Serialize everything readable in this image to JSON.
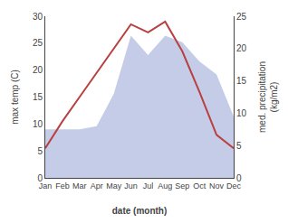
{
  "chart_data": {
    "type": "line",
    "categories": [
      "Jan",
      "Feb",
      "Mar",
      "Apr",
      "May",
      "Jun",
      "Jul",
      "Aug",
      "Sep",
      "Oct",
      "Nov",
      "Dec"
    ],
    "series": [
      {
        "type": "area",
        "axis": "y2",
        "color": "#c5cce8",
        "values": [
          7.5,
          7.5,
          7.5,
          8.0,
          13.0,
          22.0,
          19.0,
          22.0,
          21.0,
          18.0,
          16.0,
          9.5
        ]
      },
      {
        "type": "line",
        "color": "#b94040",
        "values": [
          5.5,
          10.5,
          15.0,
          19.5,
          24.0,
          28.5,
          27.0,
          29.0,
          23.5,
          16.0,
          8.0,
          5.5
        ]
      }
    ],
    "xlabel": "date (month)",
    "ylabel": "max temp (C)",
    "y2label": "med. precipitation\n(kg/m2)",
    "ylim": [
      0,
      30
    ],
    "yticks": [
      0,
      5,
      10,
      15,
      20,
      25,
      30
    ],
    "y2lim": [
      0,
      25
    ],
    "y2ticks": [
      0,
      5,
      10,
      15,
      20,
      25
    ],
    "grid": false
  }
}
